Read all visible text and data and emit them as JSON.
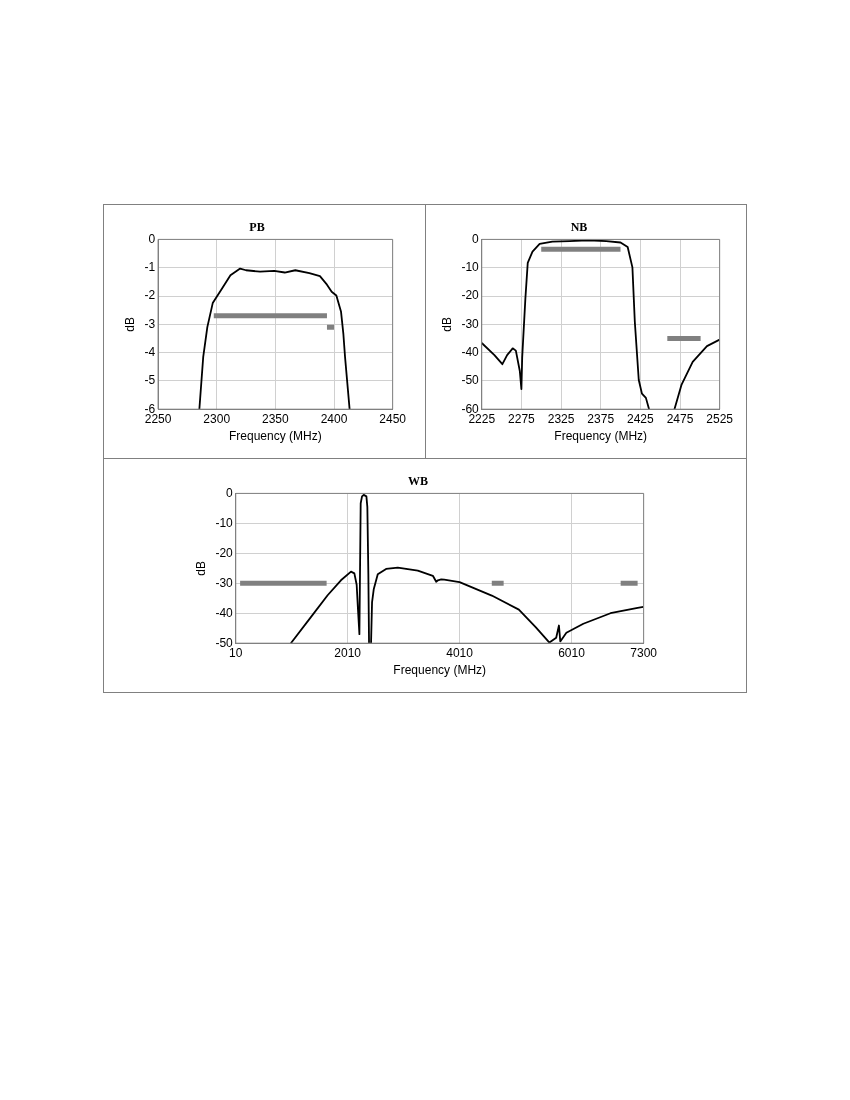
{
  "chart_data": [
    {
      "type": "line",
      "title": "PB",
      "xlabel": "Frequency (MHz)",
      "ylabel": "dB",
      "xlim": [
        2250,
        2450
      ],
      "xticks": [
        2250,
        2300,
        2350,
        2400,
        2450
      ],
      "ylim": [
        -6,
        0
      ],
      "yticks": [
        -6,
        -5,
        -4,
        -3,
        -2,
        -1,
        0
      ],
      "grid": true,
      "legend": false,
      "marker": "none",
      "line_style": "solid",
      "series": [
        {
          "color": "#000000",
          "x": [
            2285.2,
            2288.5,
            2292,
            2296.6,
            2304,
            2311.7,
            2320,
            2325,
            2337,
            2349,
            2358,
            2367,
            2379,
            2388,
            2394,
            2398,
            2402,
            2406,
            2408,
            2409.4,
            2413.3
          ],
          "values": [
            -6,
            -4.15,
            -3.1,
            -2.25,
            -1.77,
            -1.27,
            -1.03,
            -1.09,
            -1.14,
            -1.11,
            -1.17,
            -1.09,
            -1.19,
            -1.3,
            -1.6,
            -1.85,
            -1.98,
            -2.56,
            -3.35,
            -4.15,
            -6
          ]
        },
        {
          "color": "#808080",
          "x": [
            2297.5,
            2394
          ],
          "values": [
            -2.7,
            -2.7
          ]
        },
        {
          "color": "#808080",
          "x": [
            2394,
            2400
          ],
          "values": [
            -3.1,
            -3.1
          ]
        }
      ]
    },
    {
      "type": "line",
      "title": "NB",
      "xlabel": "Frequency (MHz)",
      "ylabel": "dB",
      "xlim": [
        2225,
        2525
      ],
      "xticks": [
        2225,
        2275,
        2325,
        2375,
        2425,
        2475,
        2525
      ],
      "ylim": [
        -60,
        0
      ],
      "yticks": [
        -60,
        -50,
        -40,
        -30,
        -20,
        -10,
        0
      ],
      "grid": true,
      "legend": false,
      "marker": "none",
      "line_style": "solid",
      "series": [
        {
          "color": "#000000",
          "x": [
            2225,
            2241,
            2251,
            2257,
            2264,
            2268,
            2273,
            2275,
            2276,
            2280,
            2283,
            2289,
            2298,
            2314,
            2336,
            2359,
            2382,
            2400,
            2409,
            2415,
            2418,
            2423,
            2427,
            2432,
            2436
          ],
          "values": [
            -36.6,
            -40.9,
            -44.1,
            -40.9,
            -38.5,
            -39.3,
            -46.5,
            -52.9,
            -41.7,
            -21,
            -8.3,
            -4.3,
            -1.6,
            -0.8,
            -0.6,
            -0.3,
            -0.6,
            -1.1,
            -2.7,
            -9.9,
            -29,
            -49.7,
            -54.5,
            -56,
            -60
          ]
        },
        {
          "color": "#000000",
          "x": [
            2468,
            2477,
            2491,
            2509,
            2525
          ],
          "values": [
            -60,
            -51.3,
            -43.3,
            -37.7,
            -35.4
          ]
        },
        {
          "color": "#808080",
          "x": [
            2300,
            2400
          ],
          "values": [
            -3.5,
            -3.5
          ]
        },
        {
          "color": "#808080",
          "x": [
            2459,
            2501
          ],
          "values": [
            -35,
            -35
          ]
        }
      ]
    },
    {
      "type": "line",
      "title": "WB",
      "xlabel": "Frequency (MHz)",
      "ylabel": "dB",
      "xlim": [
        10,
        7300
      ],
      "xticks": [
        10,
        2010,
        4010,
        6010,
        7300
      ],
      "ylim": [
        -50,
        0
      ],
      "yticks": [
        -50,
        -40,
        -30,
        -20,
        -10,
        0
      ],
      "grid": true,
      "legend": false,
      "marker": "none",
      "line_style": "solid",
      "series": [
        {
          "color": "#000000",
          "x": [
            995,
            1353,
            1652,
            1890,
            2070,
            2130,
            2171,
            2195,
            2213,
            2220,
            2243,
            2267,
            2297,
            2345,
            2362,
            2380,
            2392
          ],
          "values": [
            -50,
            -41.3,
            -34,
            -29,
            -26.1,
            -26.7,
            -30.5,
            -38.8,
            -44.7,
            -47,
            -3.3,
            -1,
            -0.5,
            -1,
            -4.5,
            -27,
            -50
          ]
        },
        {
          "color": "#000000",
          "x": [
            2428,
            2446,
            2476,
            2548,
            2697,
            2906,
            3264,
            3533,
            3593,
            3623,
            3682,
            3737,
            3981,
            4010,
            4586,
            5070,
            5374,
            5616,
            5737,
            5786,
            5810,
            5919,
            6222,
            6707,
            7192,
            7295
          ],
          "values": [
            -50,
            -36.4,
            -32,
            -27,
            -25.2,
            -24.8,
            -25.8,
            -27.5,
            -29.5,
            -29,
            -28.7,
            -28.8,
            -29.5,
            -29.6,
            -34.1,
            -38.8,
            -44.7,
            -49.8,
            -48.2,
            -44.1,
            -49.4,
            -46.5,
            -43.5,
            -40,
            -38.2,
            -37.9
          ]
        },
        {
          "color": "#808080",
          "x": [
            88,
            1634
          ],
          "values": [
            -30,
            -30
          ]
        },
        {
          "color": "#808080",
          "x": [
            4586,
            4798
          ],
          "values": [
            -30,
            -30
          ]
        },
        {
          "color": "#808080",
          "x": [
            6889,
            7192
          ],
          "values": [
            -30,
            -30
          ]
        }
      ]
    }
  ]
}
